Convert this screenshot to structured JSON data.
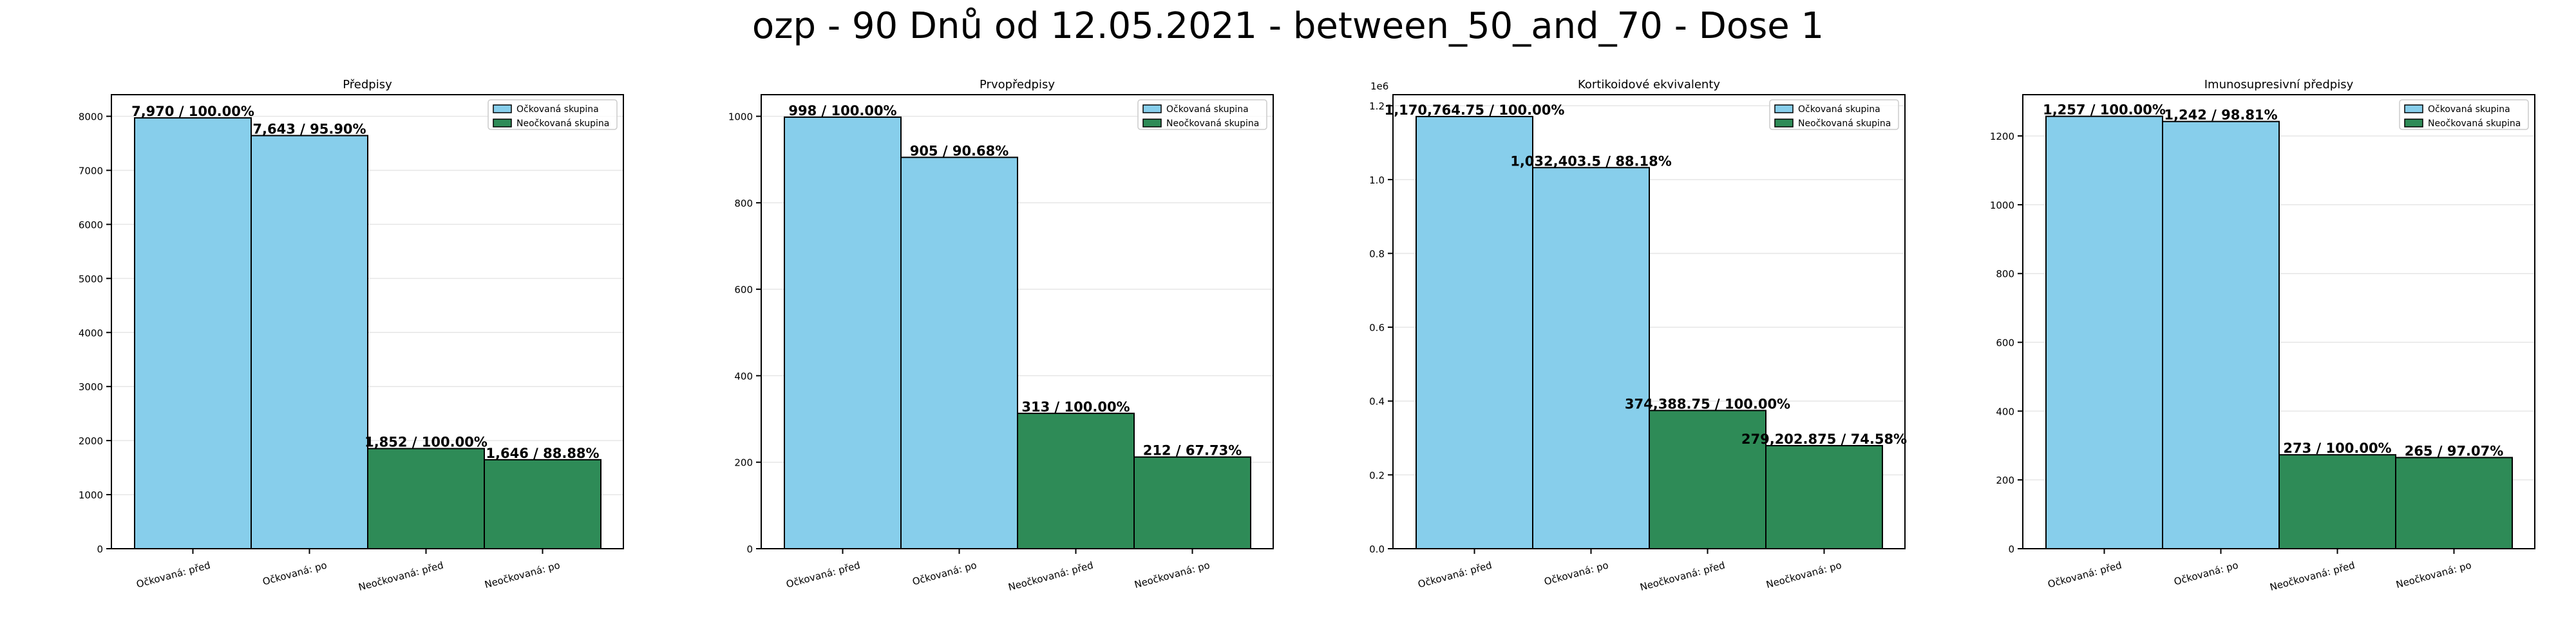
{
  "figure_title": "ozp - 90 Dnů od 12.05.2021 - between_50_and_70 - Dose 1",
  "colors": {
    "vaccinated": "#87CEEB",
    "unvaccinated": "#2E8B57",
    "edge": "#000000",
    "grid": "#e6e6e6"
  },
  "legend": {
    "vaccinated": "Očkovaná skupina",
    "unvaccinated": "Neočkovaná skupina"
  },
  "chart_data": [
    {
      "type": "bar",
      "title": "Předpisy",
      "categories": [
        "Očkovaná: před",
        "Očkovaná: po",
        "Neočkovaná: před",
        "Neočkovaná: po"
      ],
      "values": [
        7970,
        7643,
        1852,
        1646
      ],
      "labels": [
        "7,970 / 100.00%",
        "7,643 / 95.90%",
        "1,852 / 100.00%",
        "1,646 / 88.88%"
      ],
      "groups": [
        "vaccinated",
        "vaccinated",
        "unvaccinated",
        "unvaccinated"
      ],
      "ylim": [
        0,
        8400
      ],
      "yticks": [
        0,
        1000,
        2000,
        3000,
        4000,
        5000,
        6000,
        7000,
        8000
      ],
      "ytick_labels": [
        "0",
        "1000",
        "2000",
        "3000",
        "4000",
        "5000",
        "6000",
        "7000",
        "8000"
      ],
      "offset_label": "",
      "grid": true,
      "legend_position": "top-right"
    },
    {
      "type": "bar",
      "title": "Prvopředpisy",
      "categories": [
        "Očkovaná: před",
        "Očkovaná: po",
        "Neočkovaná: před",
        "Neočkovaná: po"
      ],
      "values": [
        998,
        905,
        313,
        212
      ],
      "labels": [
        "998 / 100.00%",
        "905 / 90.68%",
        "313 / 100.00%",
        "212 / 67.73%"
      ],
      "groups": [
        "vaccinated",
        "vaccinated",
        "unvaccinated",
        "unvaccinated"
      ],
      "ylim": [
        0,
        1050
      ],
      "yticks": [
        0,
        200,
        400,
        600,
        800,
        1000
      ],
      "ytick_labels": [
        "0",
        "200",
        "400",
        "600",
        "800",
        "1000"
      ],
      "offset_label": "",
      "grid": true,
      "legend_position": "top-right"
    },
    {
      "type": "bar",
      "title": "Kortikoidové ekvivalenty",
      "categories": [
        "Očkovaná: před",
        "Očkovaná: po",
        "Neočkovaná: před",
        "Neočkovaná: po"
      ],
      "values": [
        1170764.75,
        1032403.5,
        374388.75,
        279202.875
      ],
      "labels": [
        "1,170,764.75 / 100.00%",
        "1,032,403.5 / 88.18%",
        "374,388.75 / 100.00%",
        "279,202.875 / 74.58%"
      ],
      "groups": [
        "vaccinated",
        "vaccinated",
        "unvaccinated",
        "unvaccinated"
      ],
      "ylim": [
        0,
        1230000
      ],
      "yticks": [
        0,
        200000,
        400000,
        600000,
        800000,
        1000000,
        1200000
      ],
      "ytick_labels": [
        "0.0",
        "0.2",
        "0.4",
        "0.6",
        "0.8",
        "1.0",
        "1.2"
      ],
      "offset_label": "1e6",
      "grid": true,
      "legend_position": "top-right"
    },
    {
      "type": "bar",
      "title": "Imunosupresivní předpisy",
      "categories": [
        "Očkovaná: před",
        "Očkovaná: po",
        "Neočkovaná: před",
        "Neočkovaná: po"
      ],
      "values": [
        1257,
        1242,
        273,
        265
      ],
      "labels": [
        "1,257 / 100.00%",
        "1,242 / 98.81%",
        "273 / 100.00%",
        "265 / 97.07%"
      ],
      "groups": [
        "vaccinated",
        "vaccinated",
        "unvaccinated",
        "unvaccinated"
      ],
      "ylim": [
        0,
        1320
      ],
      "yticks": [
        0,
        200,
        400,
        600,
        800,
        1000,
        1200
      ],
      "ytick_labels": [
        "0",
        "200",
        "400",
        "600",
        "800",
        "1000",
        "1200"
      ],
      "offset_label": "",
      "grid": true,
      "legend_position": "top-right"
    }
  ]
}
